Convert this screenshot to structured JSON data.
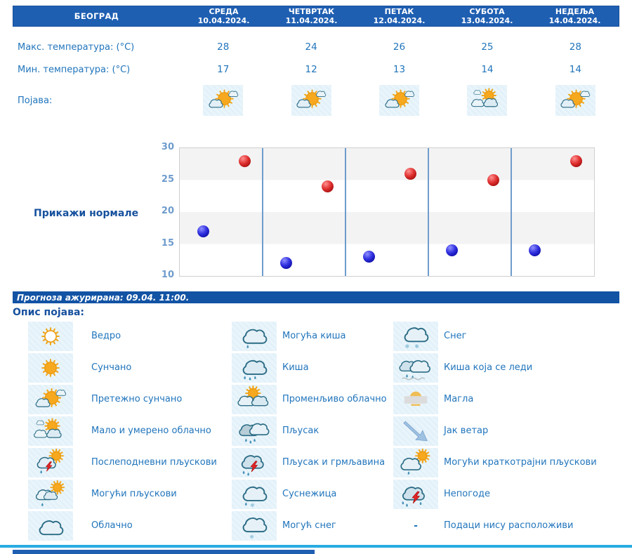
{
  "accent_colors": {
    "header_bg": "#1f5fb2",
    "status_bg": "#1253a4",
    "text_blue": "#2175bc",
    "dark_blue": "#17519e",
    "cyan_line": "#29abe2",
    "max_dot": "#cc0000",
    "min_dot": "#0000cc"
  },
  "forecast_table": {
    "city": "БЕОГРАД",
    "days": [
      {
        "name": "СРЕДА",
        "date": "10.04.2024."
      },
      {
        "name": "ЧЕТВРТАК",
        "date": "11.04.2024."
      },
      {
        "name": "ПЕТАК",
        "date": "12.04.2024."
      },
      {
        "name": "СУБОТА",
        "date": "13.04.2024."
      },
      {
        "name": "НЕДЕЉА",
        "date": "14.04.2024."
      }
    ],
    "max_temp_label": "Макс. температура: (°C)",
    "max_temp_values": [
      "28",
      "24",
      "26",
      "25",
      "28"
    ],
    "min_temp_label": "Мин. температура: (°C)",
    "min_temp_values": [
      "17",
      "12",
      "13",
      "14",
      "14"
    ],
    "phenomenon_label": "Појава:",
    "phenomenon_icons": [
      "mostly-sunny-icon",
      "mostly-sunny-icon",
      "mostly-sunny-icon",
      "partly-cloudy-icon",
      "mostly-sunny-icon"
    ]
  },
  "chart_controls": {
    "show_normals_label": "Прикажи нормале"
  },
  "chart_data": {
    "type": "scatter",
    "categories": [
      "10.04.2024.",
      "11.04.2024.",
      "12.04.2024.",
      "13.04.2024.",
      "14.04.2024."
    ],
    "series": [
      {
        "name": "Макс. температура (°C)",
        "color": "#cc0000",
        "values": [
          28,
          24,
          26,
          25,
          28
        ]
      },
      {
        "name": "Мин. температура (°C)",
        "color": "#0000cc",
        "values": [
          17,
          12,
          13,
          14,
          14
        ]
      }
    ],
    "ylim": [
      10,
      30
    ],
    "yticks": [
      30,
      25,
      20,
      15,
      10
    ],
    "grid": "horizontal-bands-alternating",
    "legend_position": "none",
    "title": "",
    "xlabel": "",
    "ylabel": ""
  },
  "status_bar": {
    "text": "Прогноза ажурирана:  09.04. 11:00."
  },
  "legend": {
    "title": "Опис појава:",
    "columns": [
      [
        {
          "icon": "clear-icon",
          "label": "Ведро"
        },
        {
          "icon": "sunny-icon",
          "label": "Сунчано"
        },
        {
          "icon": "mostly-sunny-icon",
          "label": "Претежно сунчано"
        },
        {
          "icon": "partly-cloudy-icon",
          "label": "Мало и умерено облачно"
        },
        {
          "icon": "afternoon-showers-icon",
          "label": "Послеподневни пљускови"
        },
        {
          "icon": "possible-showers-icon",
          "label": "Могући пљускови"
        },
        {
          "icon": "cloudy-icon",
          "label": "Облачно"
        }
      ],
      [
        {
          "icon": "possible-rain-icon",
          "label": "Могућа киша"
        },
        {
          "icon": "rain-icon",
          "label": "Киша"
        },
        {
          "icon": "variable-cloudy-icon",
          "label": "Променљиво облачно"
        },
        {
          "icon": "shower-icon",
          "label": "Пљусак"
        },
        {
          "icon": "shower-thunder-icon",
          "label": "Пљусак и грмљавина"
        },
        {
          "icon": "sleet-icon",
          "label": "Суснежица"
        },
        {
          "icon": "possible-snow-icon",
          "label": "Могућ снег"
        }
      ],
      [
        {
          "icon": "snow-icon",
          "label": "Снег"
        },
        {
          "icon": "freezing-rain-icon",
          "label": "Киша која се леди"
        },
        {
          "icon": "fog-icon",
          "label": "Магла"
        },
        {
          "icon": "strong-wind-icon",
          "label": "Јак ветар"
        },
        {
          "icon": "short-showers-icon",
          "label": "Могући краткотрајни пљускови"
        },
        {
          "icon": "storms-icon",
          "label": "Непогоде"
        },
        {
          "icon": "no-data",
          "label": "Подаци нису расположиви",
          "dash": "-"
        }
      ]
    ]
  }
}
